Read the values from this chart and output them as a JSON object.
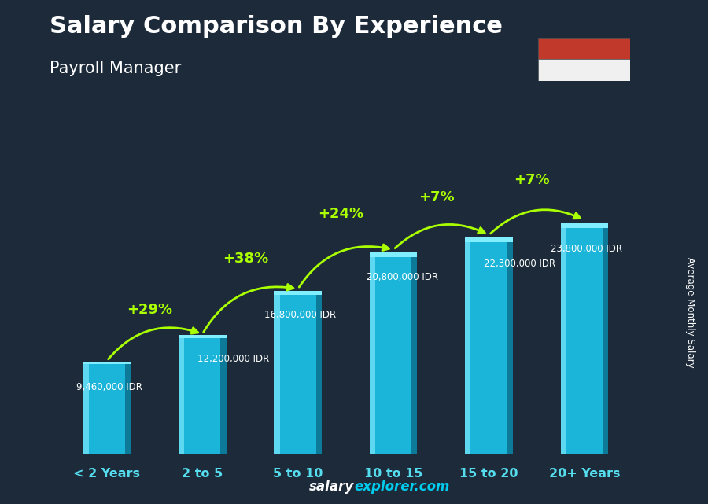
{
  "title": "Salary Comparison By Experience",
  "subtitle": "Payroll Manager",
  "categories": [
    "< 2 Years",
    "2 to 5",
    "5 to 10",
    "10 to 15",
    "15 to 20",
    "20+ Years"
  ],
  "values": [
    9460000,
    12200000,
    16800000,
    20800000,
    22300000,
    23800000
  ],
  "labels": [
    "9,460,000 IDR",
    "12,200,000 IDR",
    "16,800,000 IDR",
    "20,800,000 IDR",
    "22,300,000 IDR",
    "23,800,000 IDR"
  ],
  "pct_labels": [
    "+29%",
    "+38%",
    "+24%",
    "+7%",
    "+7%"
  ],
  "bar_color_main": "#1ab5d8",
  "bar_color_left": "#5dd8f0",
  "bar_color_right": "#0d7a99",
  "pct_color": "#aaff00",
  "title_color": "#ffffff",
  "subtitle_color": "#ffffff",
  "label_color": "#ffffff",
  "tick_color": "#55ddee",
  "bg_color": "#1c2a3a",
  "ylabel": "Average Monthly Salary",
  "footer_salary": "salary",
  "footer_explorer": "explorer.com",
  "ylim_max": 27000000,
  "flag_red": "#c0392b",
  "flag_white": "#f0f0f0"
}
